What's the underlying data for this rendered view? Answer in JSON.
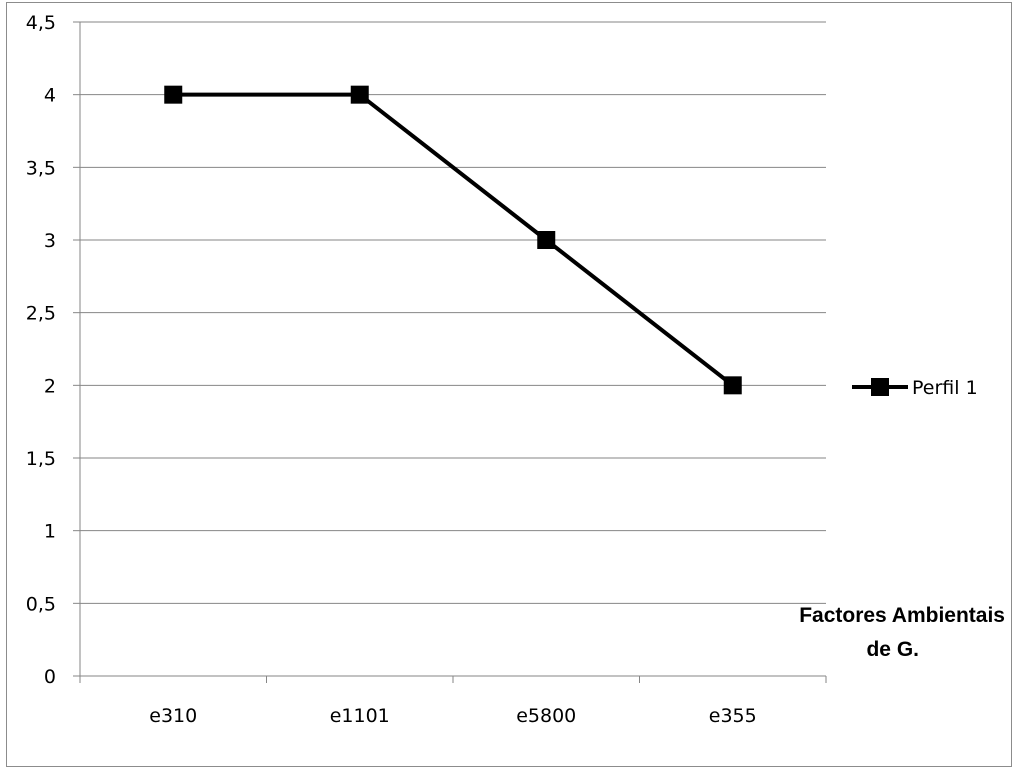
{
  "chart_data": {
    "type": "line",
    "categories": [
      "e310",
      "e1101",
      "e5800",
      "e355"
    ],
    "series": [
      {
        "name": "Perfil 1",
        "values": [
          4,
          4,
          3,
          2
        ]
      }
    ],
    "xlabel": "Factores Ambientais de G.",
    "xlabel_lines": [
      "Factores Ambientais",
      "de G."
    ],
    "ylabel": "",
    "ylim": [
      0,
      4.5
    ],
    "yticks": [
      "0",
      "0,5",
      "1",
      "1,5",
      "2",
      "2,5",
      "3",
      "3,5",
      "4",
      "4,5"
    ],
    "grid": true,
    "legend": "right",
    "marker": "square",
    "line_color": "#000000",
    "grid_color": "#868686"
  }
}
